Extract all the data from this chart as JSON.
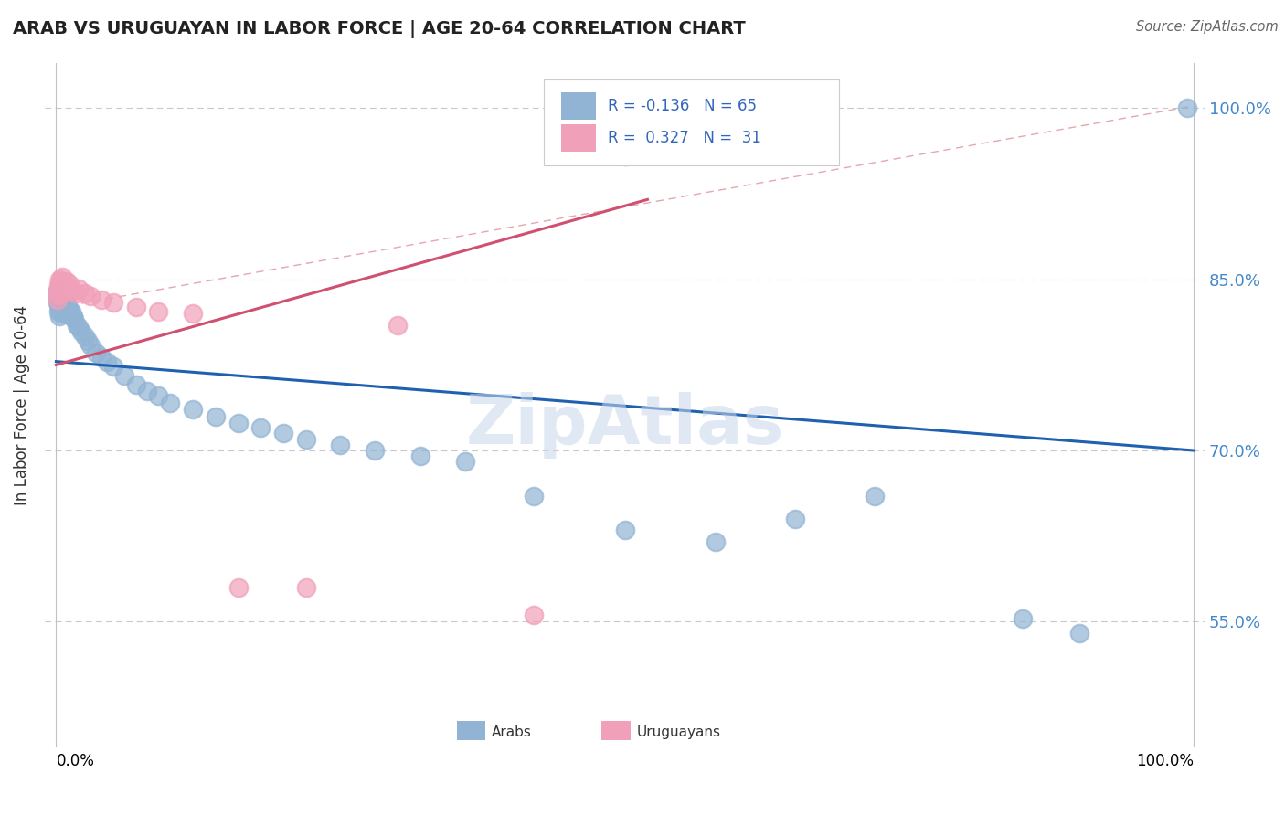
{
  "title": "ARAB VS URUGUAYAN IN LABOR FORCE | AGE 20-64 CORRELATION CHART",
  "source": "Source: ZipAtlas.com",
  "ylabel": "In Labor Force | Age 20-64",
  "legend_r_arab": "-0.136",
  "legend_n_arab": "65",
  "legend_r_uru": "0.327",
  "legend_n_uru": "31",
  "arab_color": "#92b4d4",
  "uru_color": "#f0a0b8",
  "arab_line_color": "#2060b0",
  "uru_line_color": "#d05070",
  "dash_color": "#e0909a",
  "ytick_vals": [
    0.55,
    0.7,
    0.85,
    1.0
  ],
  "ytick_labels": [
    "55.0%",
    "70.0%",
    "85.0%",
    "100.0%"
  ],
  "arab_line_x0": 0.0,
  "arab_line_y0": 0.778,
  "arab_line_x1": 1.0,
  "arab_line_y1": 0.7,
  "uru_line_x0": 0.0,
  "uru_line_y0": 0.775,
  "uru_line_x1": 0.52,
  "uru_line_y1": 0.92,
  "dash_line_x0": 0.0,
  "dash_line_y0": 0.825,
  "dash_line_x1": 1.0,
  "dash_line_y1": 1.002,
  "xlim_min": -0.01,
  "xlim_max": 1.01,
  "ylim_min": 0.44,
  "ylim_max": 1.04,
  "arab_pts_x": [
    0.001,
    0.001,
    0.001,
    0.002,
    0.002,
    0.002,
    0.002,
    0.003,
    0.003,
    0.003,
    0.003,
    0.004,
    0.004,
    0.005,
    0.005,
    0.005,
    0.006,
    0.006,
    0.007,
    0.007,
    0.008,
    0.008,
    0.009,
    0.009,
    0.01,
    0.01,
    0.011,
    0.012,
    0.013,
    0.014,
    0.015,
    0.016,
    0.018,
    0.02,
    0.022,
    0.025,
    0.028,
    0.03,
    0.035,
    0.04,
    0.045,
    0.05,
    0.06,
    0.07,
    0.08,
    0.09,
    0.1,
    0.12,
    0.14,
    0.16,
    0.18,
    0.2,
    0.22,
    0.25,
    0.28,
    0.32,
    0.36,
    0.42,
    0.5,
    0.58,
    0.65,
    0.72,
    0.85,
    0.9,
    0.995
  ],
  "arab_pts_y": [
    0.84,
    0.835,
    0.83,
    0.838,
    0.833,
    0.828,
    0.822,
    0.836,
    0.83,
    0.824,
    0.818,
    0.832,
    0.825,
    0.834,
    0.829,
    0.82,
    0.828,
    0.822,
    0.83,
    0.824,
    0.826,
    0.82,
    0.828,
    0.822,
    0.827,
    0.819,
    0.824,
    0.82,
    0.822,
    0.818,
    0.818,
    0.815,
    0.81,
    0.808,
    0.804,
    0.8,
    0.796,
    0.792,
    0.786,
    0.782,
    0.778,
    0.774,
    0.766,
    0.758,
    0.752,
    0.748,
    0.742,
    0.736,
    0.73,
    0.724,
    0.72,
    0.715,
    0.71,
    0.705,
    0.7,
    0.695,
    0.69,
    0.66,
    0.63,
    0.62,
    0.64,
    0.66,
    0.553,
    0.54,
    1.0
  ],
  "uru_pts_x": [
    0.001,
    0.001,
    0.002,
    0.002,
    0.003,
    0.003,
    0.004,
    0.004,
    0.005,
    0.006,
    0.006,
    0.007,
    0.008,
    0.009,
    0.01,
    0.012,
    0.014,
    0.017,
    0.02,
    0.025,
    0.03,
    0.04,
    0.05,
    0.07,
    0.09,
    0.12,
    0.16,
    0.22,
    0.3,
    0.42,
    0.5
  ],
  "uru_pts_y": [
    0.84,
    0.832,
    0.845,
    0.836,
    0.85,
    0.84,
    0.848,
    0.838,
    0.852,
    0.847,
    0.84,
    0.845,
    0.842,
    0.848,
    0.843,
    0.846,
    0.84,
    0.838,
    0.842,
    0.838,
    0.835,
    0.832,
    0.83,
    0.826,
    0.822,
    0.82,
    0.58,
    0.58,
    0.81,
    0.556,
    0.958
  ]
}
